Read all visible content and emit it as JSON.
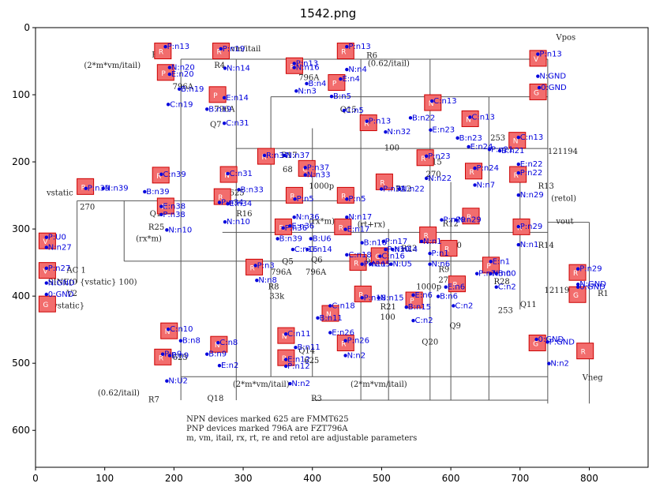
{
  "title": "1542.png",
  "axes": {
    "x_ticks": [
      "0",
      "100",
      "200",
      "300",
      "400",
      "500",
      "600",
      "700",
      "800"
    ],
    "y_ticks": [
      "0",
      "100",
      "200",
      "300",
      "400",
      "500",
      "600"
    ],
    "x_range": [
      0,
      885
    ],
    "y_range": [
      655,
      0
    ]
  },
  "colors": {
    "component_fill": "#f26d6d",
    "annotation": "#0000dd",
    "wire": "#555555"
  },
  "circuit_text": [
    {
      "t": "(2*m*vm/itail)",
      "x": 70,
      "y": 60
    },
    {
      "t": "R5",
      "x": 168,
      "y": 44
    },
    {
      "t": "vm/itail",
      "x": 282,
      "y": 35
    },
    {
      "t": "R4",
      "x": 258,
      "y": 60
    },
    {
      "t": "796A",
      "x": 198,
      "y": 92
    },
    {
      "t": "796A",
      "x": 380,
      "y": 78
    },
    {
      "t": "(0.62/itail)",
      "x": 480,
      "y": 57
    },
    {
      "t": "R6",
      "x": 478,
      "y": 45
    },
    {
      "t": "Vpos",
      "x": 752,
      "y": 18
    },
    {
      "t": "Q7",
      "x": 252,
      "y": 148
    },
    {
      "t": "796A",
      "x": 258,
      "y": 125
    },
    {
      "t": "Q15",
      "x": 440,
      "y": 126
    },
    {
      "t": "Q8",
      "x": 562,
      "y": 118
    },
    {
      "t": "100",
      "x": 504,
      "y": 183
    },
    {
      "t": "R15",
      "x": 564,
      "y": 204
    },
    {
      "t": "270",
      "x": 564,
      "y": 222
    },
    {
      "t": "R17",
      "x": 355,
      "y": 194
    },
    {
      "t": "68",
      "x": 357,
      "y": 215
    },
    {
      "t": "1000p",
      "x": 395,
      "y": 240
    },
    {
      "t": "vstatic",
      "x": 16,
      "y": 250
    },
    {
      "t": "270",
      "x": 64,
      "y": 271
    },
    {
      "t": "Q1",
      "x": 165,
      "y": 281
    },
    {
      "t": "R25",
      "x": 163,
      "y": 301
    },
    {
      "t": "(rx*m)",
      "x": 145,
      "y": 318
    },
    {
      "t": "625",
      "x": 280,
      "y": 250
    },
    {
      "t": "R16",
      "x": 290,
      "y": 281
    },
    {
      "t": "(rx*m)",
      "x": 395,
      "y": 292
    },
    {
      "t": "(rt+rx)",
      "x": 465,
      "y": 297
    },
    {
      "t": "R12",
      "x": 520,
      "y": 244
    },
    {
      "t": "R13",
      "x": 726,
      "y": 240
    },
    {
      "t": "(retol)",
      "x": 745,
      "y": 258
    },
    {
      "t": "vout",
      "x": 752,
      "y": 292
    },
    {
      "t": "R12",
      "x": 588,
      "y": 296
    },
    {
      "t": "270",
      "x": 594,
      "y": 328
    },
    {
      "t": "R14",
      "x": 726,
      "y": 328
    },
    {
      "t": "Q5",
      "x": 356,
      "y": 352
    },
    {
      "t": "796A",
      "x": 340,
      "y": 368
    },
    {
      "t": "796A",
      "x": 390,
      "y": 368
    },
    {
      "t": "Q6",
      "x": 398,
      "y": 350
    },
    {
      "t": "796A",
      "x": 462,
      "y": 350
    },
    {
      "t": "R23",
      "x": 528,
      "y": 333
    },
    {
      "t": "1000p",
      "x": 550,
      "y": 390
    },
    {
      "t": "R9",
      "x": 582,
      "y": 364
    },
    {
      "t": "270",
      "x": 582,
      "y": 380
    },
    {
      "t": "AC 1",
      "x": 45,
      "y": 365
    },
    {
      "t": "SINE(0 {vstatic} 100)",
      "x": 18,
      "y": 383
    },
    {
      "t": "V2",
      "x": 45,
      "y": 400
    },
    {
      "t": "{vstatic}",
      "x": 18,
      "y": 418
    },
    {
      "t": "R8",
      "x": 336,
      "y": 390
    },
    {
      "t": "33k",
      "x": 338,
      "y": 404
    },
    {
      "t": "R28",
      "x": 662,
      "y": 382
    },
    {
      "t": "121193",
      "x": 735,
      "y": 395
    },
    {
      "t": "Q11",
      "x": 700,
      "y": 416
    },
    {
      "t": "R1",
      "x": 812,
      "y": 400
    },
    {
      "t": "R21",
      "x": 498,
      "y": 420
    },
    {
      "t": "100",
      "x": 498,
      "y": 435
    },
    {
      "t": "Q9",
      "x": 598,
      "y": 448
    },
    {
      "t": "Q20",
      "x": 558,
      "y": 472
    },
    {
      "t": "253",
      "x": 668,
      "y": 425
    },
    {
      "t": "625",
      "x": 198,
      "y": 495
    },
    {
      "t": "Q14",
      "x": 380,
      "y": 485
    },
    {
      "t": "625",
      "x": 388,
      "y": 500
    },
    {
      "t": "Q18",
      "x": 248,
      "y": 556
    },
    {
      "t": "(2*m*vm/itail)",
      "x": 285,
      "y": 535
    },
    {
      "t": "(2*m*vm/itail)",
      "x": 455,
      "y": 535
    },
    {
      "t": "R3",
      "x": 398,
      "y": 556
    },
    {
      "t": "(0.62/itail)",
      "x": 90,
      "y": 548
    },
    {
      "t": "R7",
      "x": 163,
      "y": 558
    },
    {
      "t": "Vneg",
      "x": 790,
      "y": 525
    },
    {
      "t": "121194",
      "x": 740,
      "y": 188
    },
    {
      "t": "253",
      "x": 657,
      "y": 168
    },
    {
      "t": "NPN devices marked 625 are FMMT625",
      "x": 218,
      "y": 587
    },
    {
      "t": "PNP devices marked 796A are FZT796A",
      "x": 218,
      "y": 601
    },
    {
      "t": "m, vm, itail, rx, rt, re and retol are adjustable parameters",
      "x": 218,
      "y": 615
    }
  ],
  "components": [
    {
      "label": "R",
      "x": 172,
      "y": 23
    },
    {
      "label": "P",
      "x": 176,
      "y": 55
    },
    {
      "label": "R",
      "x": 256,
      "y": 23
    },
    {
      "label": "R",
      "x": 362,
      "y": 45
    },
    {
      "label": "R",
      "x": 436,
      "y": 23
    },
    {
      "label": "P",
      "x": 423,
      "y": 70
    },
    {
      "label": "V",
      "x": 714,
      "y": 34
    },
    {
      "label": "G",
      "x": 714,
      "y": 84
    },
    {
      "label": "P",
      "x": 251,
      "y": 88
    },
    {
      "label": "N",
      "x": 562,
      "y": 100
    },
    {
      "label": "N",
      "x": 616,
      "y": 124
    },
    {
      "label": "R",
      "x": 469,
      "y": 130
    },
    {
      "label": "N",
      "x": 684,
      "y": 156
    },
    {
      "label": "R",
      "x": 551,
      "y": 182
    },
    {
      "label": "R",
      "x": 621,
      "y": 202
    },
    {
      "label": "R",
      "x": 321,
      "y": 180
    },
    {
      "label": "C",
      "x": 380,
      "y": 198
    },
    {
      "label": "R",
      "x": 169,
      "y": 208
    },
    {
      "label": "N",
      "x": 267,
      "y": 207
    },
    {
      "label": "R",
      "x": 60,
      "y": 225
    },
    {
      "label": "R",
      "x": 176,
      "y": 254
    },
    {
      "label": "R",
      "x": 258,
      "y": 240
    },
    {
      "label": "R",
      "x": 362,
      "y": 238
    },
    {
      "label": "R",
      "x": 436,
      "y": 238
    },
    {
      "label": "R",
      "x": 492,
      "y": 218
    },
    {
      "label": "R",
      "x": 685,
      "y": 207
    },
    {
      "label": "R",
      "x": 617,
      "y": 269
    },
    {
      "label": "R",
      "x": 346,
      "y": 285
    },
    {
      "label": "R",
      "x": 432,
      "y": 285
    },
    {
      "label": "R",
      "x": 555,
      "y": 297
    },
    {
      "label": "R",
      "x": 585,
      "y": 317
    },
    {
      "label": "R",
      "x": 690,
      "y": 285
    },
    {
      "label": "V",
      "x": 5,
      "y": 306
    },
    {
      "label": "V",
      "x": 5,
      "y": 350
    },
    {
      "label": "G",
      "x": 5,
      "y": 400
    },
    {
      "label": "R",
      "x": 304,
      "y": 345
    },
    {
      "label": "C",
      "x": 485,
      "y": 328
    },
    {
      "label": "R",
      "x": 454,
      "y": 338
    },
    {
      "label": "P",
      "x": 646,
      "y": 342
    },
    {
      "label": "R",
      "x": 597,
      "y": 370
    },
    {
      "label": "R",
      "x": 771,
      "y": 353
    },
    {
      "label": "G",
      "x": 771,
      "y": 386
    },
    {
      "label": "R",
      "x": 461,
      "y": 385
    },
    {
      "label": "P",
      "x": 535,
      "y": 394
    },
    {
      "label": "N",
      "x": 414,
      "y": 414
    },
    {
      "label": "N",
      "x": 181,
      "y": 440
    },
    {
      "label": "N",
      "x": 253,
      "y": 460
    },
    {
      "label": "N",
      "x": 350,
      "y": 447
    },
    {
      "label": "R",
      "x": 436,
      "y": 458
    },
    {
      "label": "G",
      "x": 713,
      "y": 458
    },
    {
      "label": "R",
      "x": 782,
      "y": 470
    },
    {
      "label": "R",
      "x": 172,
      "y": 479
    },
    {
      "label": "R",
      "x": 350,
      "y": 480
    }
  ],
  "annotations": [
    {
      "t": "P:n13",
      "x": 190,
      "y": 32
    },
    {
      "t": "N:n20",
      "x": 196,
      "y": 63
    },
    {
      "t": "E:n20",
      "x": 196,
      "y": 73
    },
    {
      "t": "B:n19",
      "x": 210,
      "y": 95
    },
    {
      "t": "C:n19",
      "x": 194,
      "y": 118
    },
    {
      "t": "P:n19",
      "x": 270,
      "y": 35
    },
    {
      "t": "N:n14",
      "x": 276,
      "y": 64
    },
    {
      "t": "E:n14",
      "x": 275,
      "y": 108
    },
    {
      "t": "B:n19",
      "x": 250,
      "y": 125
    },
    {
      "t": "C:n31",
      "x": 275,
      "y": 146
    },
    {
      "t": "P:n13",
      "x": 376,
      "y": 57
    },
    {
      "t": "N:n16",
      "x": 376,
      "y": 63
    },
    {
      "t": "B:n4",
      "x": 394,
      "y": 87
    },
    {
      "t": "N:n3",
      "x": 379,
      "y": 98
    },
    {
      "t": "P:n13",
      "x": 452,
      "y": 32
    },
    {
      "t": "N:n4",
      "x": 452,
      "y": 66
    },
    {
      "t": "E:n4",
      "x": 443,
      "y": 80
    },
    {
      "t": "B:n5",
      "x": 430,
      "y": 106
    },
    {
      "t": "C:n5",
      "x": 448,
      "y": 127
    },
    {
      "t": "P:n13",
      "x": 728,
      "y": 43
    },
    {
      "t": "N:GND",
      "x": 728,
      "y": 76
    },
    {
      "t": "0:GND",
      "x": 730,
      "y": 93
    },
    {
      "t": "C:n13",
      "x": 575,
      "y": 113
    },
    {
      "t": "B:n22",
      "x": 544,
      "y": 138
    },
    {
      "t": "E:n23",
      "x": 573,
      "y": 156
    },
    {
      "t": "C:n13",
      "x": 630,
      "y": 137
    },
    {
      "t": "B:n23",
      "x": 612,
      "y": 168
    },
    {
      "t": "E:n24",
      "x": 628,
      "y": 181
    },
    {
      "t": "P:n13",
      "x": 481,
      "y": 143
    },
    {
      "t": "N:n32",
      "x": 508,
      "y": 159
    },
    {
      "t": "C:n13",
      "x": 700,
      "y": 167
    },
    {
      "t": "B:n21",
      "x": 673,
      "y": 187
    },
    {
      "t": "E:n22",
      "x": 700,
      "y": 207
    },
    {
      "t": "P:n23",
      "x": 567,
      "y": 195
    },
    {
      "t": "N:n22",
      "x": 567,
      "y": 228
    },
    {
      "t": "P:n24",
      "x": 637,
      "y": 213
    },
    {
      "t": "N:n7",
      "x": 637,
      "y": 238
    },
    {
      "t": "P:n21",
      "x": 658,
      "y": 185
    },
    {
      "t": "P:n22",
      "x": 700,
      "y": 220
    },
    {
      "t": "N:n29",
      "x": 700,
      "y": 253
    },
    {
      "t": "R:n37",
      "x": 333,
      "y": 194
    },
    {
      "t": "N:n37",
      "x": 362,
      "y": 194
    },
    {
      "t": "P:n37",
      "x": 392,
      "y": 212
    },
    {
      "t": "N:n33",
      "x": 392,
      "y": 223
    },
    {
      "t": "C:n39",
      "x": 184,
      "y": 222
    },
    {
      "t": "B:n39",
      "x": 160,
      "y": 248
    },
    {
      "t": "E:n38",
      "x": 184,
      "y": 270
    },
    {
      "t": "P:n38",
      "x": 184,
      "y": 282
    },
    {
      "t": "N:n10",
      "x": 192,
      "y": 305
    },
    {
      "t": "C:n31",
      "x": 280,
      "y": 221
    },
    {
      "t": "B:n33",
      "x": 296,
      "y": 245
    },
    {
      "t": "E:n34",
      "x": 280,
      "y": 266
    },
    {
      "t": "P:n34",
      "x": 268,
      "y": 264
    },
    {
      "t": "N:n10",
      "x": 276,
      "y": 293
    },
    {
      "t": "P:n39",
      "x": 75,
      "y": 243
    },
    {
      "t": "N:n39",
      "x": 100,
      "y": 243
    },
    {
      "t": "P:n5",
      "x": 377,
      "y": 259
    },
    {
      "t": "N:n36",
      "x": 376,
      "y": 286
    },
    {
      "t": "P:n5",
      "x": 452,
      "y": 259
    },
    {
      "t": "N:n17",
      "x": 452,
      "y": 286
    },
    {
      "t": "P:n32",
      "x": 502,
      "y": 244
    },
    {
      "t": "N:n22",
      "x": 528,
      "y": 244
    },
    {
      "t": "P:n29",
      "x": 589,
      "y": 290
    },
    {
      "t": "N:n29",
      "x": 610,
      "y": 290
    },
    {
      "t": "P:n29",
      "x": 700,
      "y": 300
    },
    {
      "t": "N:n1",
      "x": 700,
      "y": 327
    },
    {
      "t": "P:n36",
      "x": 360,
      "y": 302
    },
    {
      "t": "E:n36",
      "x": 370,
      "y": 299
    },
    {
      "t": "B:n39",
      "x": 352,
      "y": 318
    },
    {
      "t": "B:U6",
      "x": 400,
      "y": 318
    },
    {
      "t": "C:n16",
      "x": 374,
      "y": 334
    },
    {
      "t": "C:n14",
      "x": 395,
      "y": 334
    },
    {
      "t": "E:n17",
      "x": 450,
      "y": 304
    },
    {
      "t": "B:n16",
      "x": 474,
      "y": 324
    },
    {
      "t": "C:n18",
      "x": 452,
      "y": 342
    },
    {
      "t": "P:n17",
      "x": 505,
      "y": 322
    },
    {
      "t": "N:n1",
      "x": 560,
      "y": 322
    },
    {
      "t": "P:n10",
      "x": 508,
      "y": 334
    },
    {
      "t": "N:n14",
      "x": 518,
      "y": 334
    },
    {
      "t": "C:n16",
      "x": 500,
      "y": 344
    },
    {
      "t": "N:U5",
      "x": 516,
      "y": 356
    },
    {
      "t": "P:n1",
      "x": 572,
      "y": 340
    },
    {
      "t": "N:n6",
      "x": 572,
      "y": 356
    },
    {
      "t": "P:U0",
      "x": 18,
      "y": 316
    },
    {
      "t": "N:n27",
      "x": 18,
      "y": 331
    },
    {
      "t": "P:n27",
      "x": 18,
      "y": 362
    },
    {
      "t": "N:GND",
      "x": 18,
      "y": 384
    },
    {
      "t": "0:GND",
      "x": 18,
      "y": 401
    },
    {
      "t": "P:n3",
      "x": 320,
      "y": 358
    },
    {
      "t": "N:n8",
      "x": 322,
      "y": 380
    },
    {
      "t": "P:n11",
      "x": 474,
      "y": 356
    },
    {
      "t": "N:n5",
      "x": 486,
      "y": 356
    },
    {
      "t": "E:n1",
      "x": 660,
      "y": 352
    },
    {
      "t": "B:n0",
      "x": 668,
      "y": 370
    },
    {
      "t": "C:n2",
      "x": 668,
      "y": 390
    },
    {
      "t": "P:n7",
      "x": 640,
      "y": 370
    },
    {
      "t": "N:n0",
      "x": 660,
      "y": 370
    },
    {
      "t": "P:n29",
      "x": 786,
      "y": 363
    },
    {
      "t": "N:GND",
      "x": 786,
      "y": 386
    },
    {
      "t": "0:GND",
      "x": 786,
      "y": 390
    },
    {
      "t": "P:n18",
      "x": 474,
      "y": 406
    },
    {
      "t": "N:n15",
      "x": 498,
      "y": 406
    },
    {
      "t": "E:n6",
      "x": 548,
      "y": 402
    },
    {
      "t": "B:n15",
      "x": 538,
      "y": 420
    },
    {
      "t": "C:n2",
      "x": 548,
      "y": 440
    },
    {
      "t": "E:n6",
      "x": 595,
      "y": 390
    },
    {
      "t": "B:n6",
      "x": 584,
      "y": 404
    },
    {
      "t": "C:n2",
      "x": 606,
      "y": 418
    },
    {
      "t": "C:n18",
      "x": 428,
      "y": 418
    },
    {
      "t": "B:n11",
      "x": 410,
      "y": 436
    },
    {
      "t": "E:n26",
      "x": 428,
      "y": 458
    },
    {
      "t": "P:n26",
      "x": 450,
      "y": 470
    },
    {
      "t": "N:n2",
      "x": 450,
      "y": 492
    },
    {
      "t": "C:n10",
      "x": 194,
      "y": 453
    },
    {
      "t": "B:n8",
      "x": 212,
      "y": 470
    },
    {
      "t": "E:n9",
      "x": 196,
      "y": 492
    },
    {
      "t": "C:n8",
      "x": 266,
      "y": 473
    },
    {
      "t": "B:n9",
      "x": 250,
      "y": 490
    },
    {
      "t": "E:n2",
      "x": 268,
      "y": 507
    },
    {
      "t": "C:n11",
      "x": 364,
      "y": 460
    },
    {
      "t": "B:n11",
      "x": 378,
      "y": 480
    },
    {
      "t": "E:n12",
      "x": 364,
      "y": 498
    },
    {
      "t": "P:n12",
      "x": 364,
      "y": 508
    },
    {
      "t": "N:n2",
      "x": 370,
      "y": 534
    },
    {
      "t": "P:n9",
      "x": 186,
      "y": 490
    },
    {
      "t": "N:U2",
      "x": 192,
      "y": 530
    },
    {
      "t": "0:GND",
      "x": 726,
      "y": 468
    },
    {
      "t": "P:GND",
      "x": 742,
      "y": 472
    },
    {
      "t": "N:n2",
      "x": 744,
      "y": 504
    }
  ]
}
